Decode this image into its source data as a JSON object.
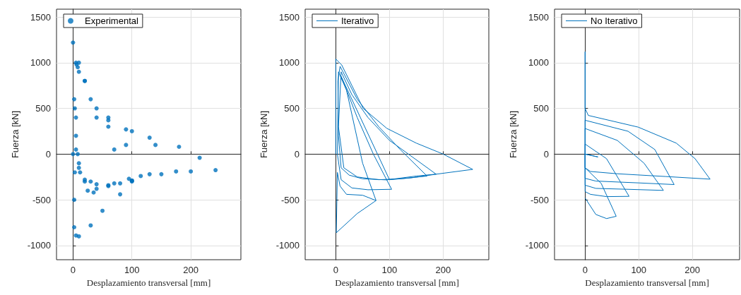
{
  "chart_data": [
    {
      "type": "scatter",
      "xlabel": "Desplazamiento transversal [mm]",
      "ylabel": "Fuerza [kN]",
      "xlim": [
        -28,
        285
      ],
      "ylim": [
        -1155,
        1585
      ],
      "xticks": [
        0,
        100,
        200
      ],
      "yticks": [
        -1000,
        -500,
        0,
        500,
        1000,
        1500
      ],
      "grid": true,
      "legend": "top left",
      "marker": "circle",
      "series": [
        {
          "name": "Experimental",
          "color": "#0072bd",
          "x": [
            0,
            2,
            0,
            10,
            20,
            40,
            60,
            90,
            130,
            180,
            215,
            242,
            200,
            150,
            100,
            70,
            40,
            20,
            10,
            5,
            3,
            5,
            8,
            30,
            60,
            100,
            140,
            175,
            130,
            100,
            60,
            30,
            10,
            5,
            6,
            20,
            60,
            90,
            115,
            80,
            40,
            20,
            8,
            10,
            40,
            70,
            95,
            60,
            35,
            25,
            12,
            5,
            3,
            2,
            2,
            5,
            10,
            30,
            50,
            80,
            100
          ],
          "values": [
            0,
            600,
            1220,
            1000,
            800,
            500,
            370,
            270,
            180,
            80,
            -40,
            -175,
            -190,
            -220,
            -290,
            -320,
            -330,
            -280,
            -150,
            50,
            500,
            1000,
            950,
            600,
            400,
            250,
            100,
            -190,
            -220,
            -290,
            -340,
            -300,
            -100,
            400,
            980,
            800,
            300,
            100,
            -240,
            -320,
            -380,
            -300,
            0,
            900,
            400,
            50,
            -270,
            -350,
            -420,
            -400,
            -200,
            200,
            -200,
            -500,
            -800,
            -890,
            -900,
            -780,
            -620,
            -440,
            -300
          ]
        }
      ]
    },
    {
      "type": "line",
      "xlabel": "Desplazamiento transversal [mm]",
      "ylabel": "Fuerza [kN]",
      "xlim": [
        -57,
        285
      ],
      "ylim": [
        -1155,
        1585
      ],
      "xticks": [
        0,
        100,
        200
      ],
      "yticks": [
        -1000,
        -500,
        0,
        500,
        1000,
        1500
      ],
      "grid": true,
      "legend": "top left",
      "marker": "none",
      "series": [
        {
          "name": "Iterativo",
          "color": "#0072bd",
          "x": [
            0,
            0,
            11,
            30,
            51,
            95,
            150,
            200,
            255,
            189,
            150,
            95,
            50,
            25,
            10,
            5,
            4,
            8,
            40,
            80,
            120,
            170,
            120,
            80,
            40,
            15,
            5,
            10,
            30,
            60,
            100,
            187,
            140,
            100,
            10,
            40,
            70,
            104,
            60,
            30,
            10,
            3,
            5,
            20,
            50,
            75,
            50,
            20,
            8,
            3,
            1,
            40,
            75
          ],
          "values": [
            0,
            1040,
            975,
            750,
            500,
            282,
            120,
            0,
            -167,
            -218,
            -240,
            -282,
            -270,
            -230,
            -150,
            200,
            800,
            960,
            600,
            300,
            50,
            -240,
            -270,
            -280,
            -250,
            -150,
            300,
            900,
            650,
            400,
            150,
            -220,
            -260,
            -280,
            850,
            400,
            0,
            -385,
            -390,
            -370,
            -280,
            0,
            900,
            700,
            -100,
            -508,
            -450,
            -440,
            -350,
            -200,
            -860,
            -650,
            -508
          ]
        }
      ]
    },
    {
      "type": "line",
      "xlabel": "Desplazamiento transversal [mm]",
      "ylabel": "Fuerza [kN]",
      "xlim": [
        -57,
        288
      ],
      "ylim": [
        -1155,
        1585
      ],
      "xticks": [
        0,
        100,
        200
      ],
      "yticks": [
        -1000,
        -500,
        0,
        500,
        1000,
        1500
      ],
      "grid": true,
      "legend": "top left",
      "marker": "none",
      "series": [
        {
          "name": "No Iterativo",
          "color": "#0072bd",
          "x": [
            0,
            0,
            0,
            6,
            99,
            170,
            205,
            233,
            150,
            60,
            10,
            0,
            0,
            80,
            130,
            166,
            100,
            20,
            0,
            0,
            60,
            110,
            146,
            80,
            20,
            0,
            0,
            40,
            82,
            40,
            10,
            0,
            0,
            24,
            0,
            0,
            30,
            58,
            40,
            20,
            0
          ],
          "values": [
            0,
            1120,
            500,
            423,
            295,
            120,
            -50,
            -274,
            -245,
            -215,
            -190,
            -150,
            370,
            250,
            50,
            -333,
            -315,
            -295,
            -265,
            280,
            150,
            -100,
            -397,
            -385,
            -375,
            -340,
            110,
            -50,
            -462,
            -465,
            -440,
            -410,
            0,
            -31,
            0,
            -150,
            -320,
            -680,
            -705,
            -660,
            -480
          ]
        }
      ]
    }
  ]
}
